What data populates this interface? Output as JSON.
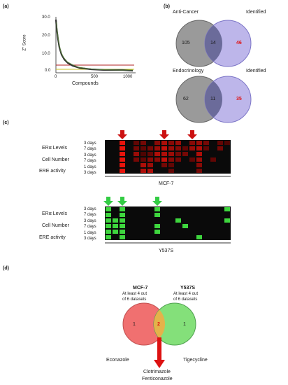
{
  "panel_a": {
    "letter": "(a)",
    "ylabel": "Z\" Score",
    "xlabel": "Compounds",
    "yticks": [
      "30.0",
      "20.0",
      "10.0",
      "0.0"
    ],
    "xticks": [
      "0",
      "500",
      "1000"
    ]
  },
  "panel_b": {
    "letter": "(b)",
    "venn_top": {
      "left_title": "Anti-Cancer",
      "right_title": "Identified",
      "left": "105",
      "overlap": "14",
      "right": "46"
    },
    "venn_bottom": {
      "left_title": "Endocrinology",
      "right_title": "Identified",
      "left": "62",
      "overlap": "11",
      "right": "35"
    }
  },
  "panel_c": {
    "letter": "(c)",
    "rows": [
      {
        "group": "ERα Levels",
        "times": [
          "3 days",
          "7 days"
        ]
      },
      {
        "group": "Cell Number",
        "times": [
          "3 days",
          "7 days"
        ]
      },
      {
        "group": "ERE activity",
        "times": [
          "1 days",
          "3 days"
        ]
      }
    ],
    "heatmap_top_label": "MCF-7",
    "heatmap_bottom_label": "Y537S",
    "colors": {
      "red": "#e8140c",
      "green": "#3ed63e",
      "red_arrow": "#cc1111",
      "green_arrow": "#33cc44"
    }
  },
  "panel_d": {
    "letter": "(d)",
    "left_title": "MCF-7",
    "left_sub1": "At least 4 out",
    "left_sub2": "of 6 datasets",
    "right_title": "Y537S",
    "right_sub1": "At least 4 out",
    "right_sub2": "of 6 datasets",
    "left_count": "1",
    "overlap_count": "2",
    "right_count": "1",
    "left_drug": "Econazole",
    "right_drug": "Tigecycline",
    "overlap_drug_1": "Clotrimazole",
    "overlap_drug_2": "Fenticonazole"
  }
}
